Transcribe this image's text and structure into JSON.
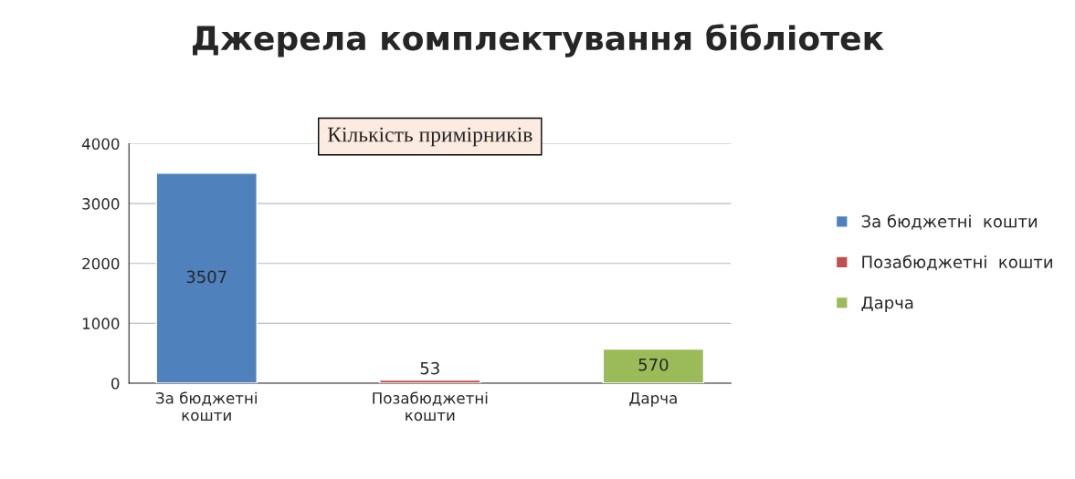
{
  "chart_data": {
    "type": "bar",
    "title": "Джерела комплектування бібліотек",
    "categories": [
      "За бюджетні\nкошти",
      "Позабюджетні\nкошти",
      "Дарча"
    ],
    "series": [
      {
        "name": "За бюджетні  кошти",
        "color": "#4f81bd",
        "values": [
          3507,
          null,
          null
        ]
      },
      {
        "name": "Позабюджетні  кошти",
        "color": "#c0504d",
        "values": [
          null,
          53,
          null
        ]
      },
      {
        "name": "Дарча",
        "color": "#9bbb59",
        "values": [
          null,
          null,
          570
        ]
      }
    ],
    "annotations": [
      "Кількість примірників"
    ],
    "ylim": [
      0,
      4000
    ],
    "yticks": [
      0,
      1000,
      2000,
      3000,
      4000
    ],
    "grid": "y",
    "legend": "right",
    "data_labels": true
  }
}
